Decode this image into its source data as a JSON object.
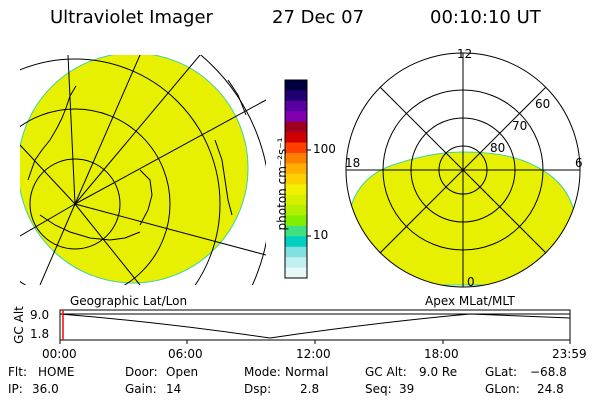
{
  "header": {
    "instrument": "Ultraviolet Imager",
    "date": "27 Dec 07",
    "time": "00:10:10 UT"
  },
  "colorbar": {
    "unit_label": "photon cm⁻²s⁻¹",
    "ticks": [
      "100",
      "10"
    ],
    "colors": [
      "#000040",
      "#200070",
      "#5a00a0",
      "#8000b0",
      "#a00020",
      "#d00000",
      "#ff4000",
      "#ff8000",
      "#ffb000",
      "#ffd000",
      "#f0f000",
      "#d8f000",
      "#b0f000",
      "#80f000",
      "#40e080",
      "#00d0c0",
      "#80e0e0",
      "#c0f0f0",
      "#e8f8f8"
    ]
  },
  "left_panel": {
    "caption": "Geographic Lat/Lon",
    "fill_color": "#e6f000"
  },
  "right_panel": {
    "caption": "Apex MLat/MLT",
    "fill_color": "#e6f000",
    "mlt_labels": {
      "top": "12",
      "left": "18",
      "right": "6",
      "bottom": "0"
    },
    "lat_labels": [
      "60",
      "70",
      "80"
    ]
  },
  "altitude_strip": {
    "axis_label": "GC Alt",
    "y_ticks": [
      "9.0",
      "1.8"
    ],
    "x_ticks": [
      "00:00",
      "06:00",
      "12:00",
      "18:00",
      "23:59"
    ],
    "marker_color": "#ff0000"
  },
  "info": {
    "flt_label": "Flt:",
    "flt_value": "HOME",
    "door_label": "Door:",
    "door_value": "Open",
    "mode_label": "Mode:",
    "mode_value": "Normal",
    "gcalt_label": "GC Alt:",
    "gcalt_value": "9.0 Re",
    "glat_label": "GLat:",
    "glat_value": "−68.8",
    "ip_label": "IP:",
    "ip_value": "36.0",
    "gain_label": "Gain:",
    "gain_value": "14",
    "dsp_label": "Dsp:",
    "dsp_value": "2.8",
    "seq_label": "Seq:",
    "seq_value": "39",
    "glon_label": "GLon:",
    "glon_value": "24.8"
  }
}
